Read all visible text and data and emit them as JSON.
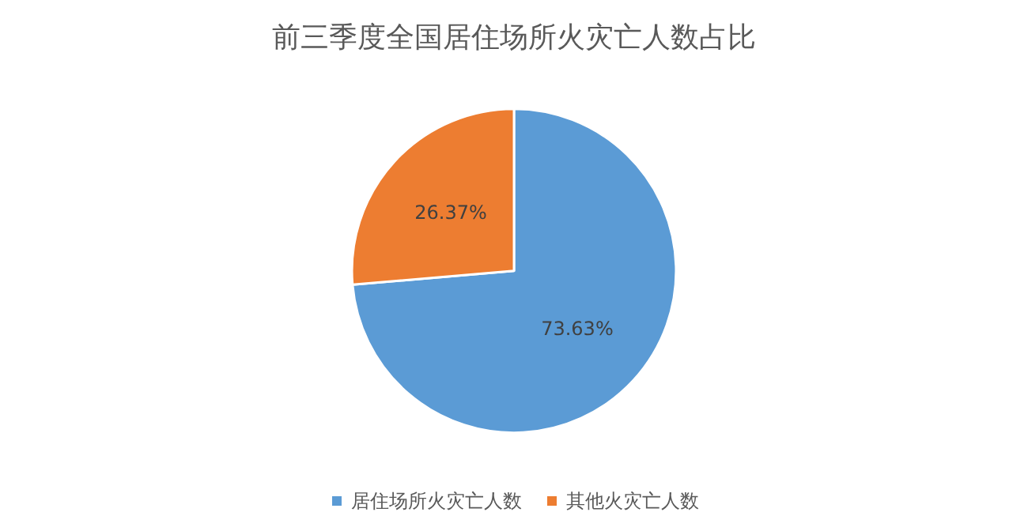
{
  "chart_data": {
    "type": "pie",
    "title": "前三季度全国居住场所火灾亡人数占比",
    "categories": [
      "居住场所火灾亡人数",
      "其他火灾亡人数"
    ],
    "values": [
      73.63,
      26.37
    ],
    "value_labels": [
      "73.63%",
      "26.37%"
    ],
    "colors": [
      "#5b9bd5",
      "#ed7d31"
    ],
    "legend": "bottom"
  }
}
